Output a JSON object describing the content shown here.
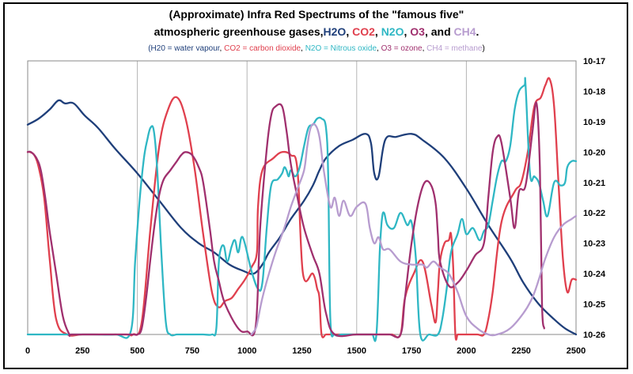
{
  "chart_data": {
    "type": "line",
    "title_line1": "(Approximate) Infra Red Spectrums of the \"famous five\"",
    "title_line2_prefix": "atmospheric greenhouse gases,",
    "title_gases": [
      {
        "label": "H2O",
        "color": "#1f3f7a"
      },
      {
        "label": "CO2",
        "color": "#e0404e"
      },
      {
        "label": "N2O",
        "color": "#2fb7c4"
      },
      {
        "label": "O3",
        "color": "#a0306e"
      },
      {
        "label": "CH4",
        "color": "#b79ccf"
      }
    ],
    "title_and": "and",
    "legend": {
      "open": "(",
      "close": ")",
      "items": [
        {
          "text": "H20 = water vapour",
          "color": "#1f3f7a"
        },
        {
          "text": "CO2 = carbon dioxide",
          "color": "#e0404e"
        },
        {
          "text": "N2O = Nitrous oxide",
          "color": "#2fb7c4"
        },
        {
          "text": "O3 = ozone",
          "color": "#a0306e"
        },
        {
          "text": "CH4 = methane",
          "color": "#b79ccf"
        }
      ]
    },
    "xlim": [
      0,
      2500
    ],
    "x_ticks": [
      0,
      250,
      500,
      750,
      1000,
      1250,
      1500,
      1750,
      2000,
      2250,
      2500
    ],
    "ylim": [
      -26,
      -17
    ],
    "y_tick_labels": [
      "10-17",
      "10-18",
      "10-19",
      "10-20",
      "10-21",
      "10-22",
      "10-23",
      "10-24",
      "10-25",
      "10-26"
    ],
    "grid": true,
    "series": [
      {
        "key": "h2o",
        "color": "#1f3f7a",
        "x": [
          0,
          50,
          100,
          140,
          170,
          210,
          260,
          320,
          400,
          500,
          600,
          700,
          780,
          850,
          920,
          980,
          1030,
          1070,
          1100,
          1150,
          1200,
          1260,
          1300,
          1330,
          1360,
          1420,
          1480,
          1540,
          1565,
          1580,
          1600,
          1630,
          1680,
          1750,
          1800,
          1900,
          2000,
          2100,
          2200,
          2260,
          2330,
          2400,
          2450,
          2500
        ],
        "y": [
          -19.1,
          -18.9,
          -18.6,
          -18.3,
          -18.4,
          -18.4,
          -18.8,
          -19.2,
          -19.9,
          -20.7,
          -21.6,
          -22.5,
          -23.0,
          -23.3,
          -23.7,
          -23.9,
          -24.0,
          -23.7,
          -23.3,
          -22.8,
          -22.2,
          -21.6,
          -21.1,
          -20.6,
          -20.2,
          -19.8,
          -19.6,
          -19.4,
          -19.7,
          -20.7,
          -20.8,
          -19.6,
          -19.5,
          -19.4,
          -19.6,
          -20.2,
          -21.2,
          -22.4,
          -23.5,
          -24.3,
          -25.0,
          -25.5,
          -25.8,
          -26.0
        ]
      },
      {
        "key": "co2",
        "color": "#e0404e",
        "x": [
          0,
          10,
          30,
          50,
          75,
          100,
          130,
          180,
          250,
          350,
          450,
          480,
          520,
          560,
          600,
          640,
          680,
          720,
          760,
          800,
          840,
          870,
          900,
          930,
          960,
          990,
          1020,
          1045,
          1050,
          1070,
          1120,
          1160,
          1200,
          1230,
          1255,
          1300,
          1320,
          1330,
          1340,
          1360,
          1380,
          1400,
          1500,
          1540,
          1580,
          1620,
          1660,
          1700,
          1720,
          1760,
          1800,
          1840,
          1860,
          1870,
          1880,
          1900,
          1920,
          1930,
          1940,
          1950,
          1960,
          1970,
          2000,
          2050,
          2080,
          2100,
          2120,
          2160,
          2220,
          2250,
          2280,
          2310,
          2340,
          2360,
          2380,
          2400,
          2420,
          2440,
          2460,
          2480,
          2500
        ],
        "y": [
          -20.0,
          -20.0,
          -20.1,
          -20.5,
          -21.5,
          -23.5,
          -25.5,
          -26.0,
          -26.0,
          -26.0,
          -26.0,
          -26.0,
          -25.6,
          -22.5,
          -19.8,
          -18.6,
          -18.2,
          -18.9,
          -20.5,
          -22.7,
          -24.6,
          -25.1,
          -24.9,
          -24.8,
          -24.5,
          -24.2,
          -23.8,
          -23.3,
          -21.8,
          -20.6,
          -20.2,
          -20.0,
          -20.1,
          -20.6,
          -24.0,
          -24.0,
          -24.5,
          -24.8,
          -26.0,
          -26.0,
          -26.0,
          -26.0,
          -26.0,
          -26.0,
          -26.0,
          -26.0,
          -26.0,
          -26.0,
          -24.8,
          -24.0,
          -23.6,
          -25.0,
          -25.6,
          -24.6,
          -23.6,
          -23.0,
          -22.9,
          -22.7,
          -23.8,
          -26.0,
          -26.0,
          -26.0,
          -26.0,
          -26.0,
          -26.0,
          -25.5,
          -24.6,
          -22.3,
          -21.3,
          -21.0,
          -20.0,
          -18.5,
          -18.2,
          -17.8,
          -17.6,
          -18.5,
          -21.0,
          -23.5,
          -24.6,
          -24.2,
          -24.2
        ]
      },
      {
        "key": "n2o",
        "color": "#2fb7c4",
        "x": [
          0,
          100,
          200,
          300,
          400,
          470,
          490,
          510,
          530,
          545,
          560,
          575,
          590,
          610,
          630,
          650,
          680,
          700,
          760,
          800,
          840,
          860,
          870,
          880,
          895,
          910,
          930,
          945,
          960,
          980,
          1020,
          1050,
          1070,
          1090,
          1110,
          1140,
          1160,
          1170,
          1180,
          1190,
          1200,
          1220,
          1240,
          1260,
          1280,
          1300,
          1320,
          1340,
          1360,
          1370,
          1380,
          1400,
          1430,
          1460,
          1500,
          1540,
          1570,
          1590,
          1605,
          1615,
          1625,
          1640,
          1670,
          1700,
          1730,
          1750,
          1770,
          1790,
          1830,
          1870,
          1890,
          1910,
          1930,
          1960,
          1980,
          2000,
          2030,
          2060,
          2080,
          2100,
          2120,
          2140,
          2160,
          2180,
          2200,
          2220,
          2240,
          2265,
          2270,
          2290,
          2310,
          2330,
          2350,
          2370,
          2400,
          2430,
          2450,
          2460,
          2480,
          2500
        ],
        "y": [
          -26.0,
          -26.0,
          -26.0,
          -26.0,
          -26.0,
          -25.9,
          -23.6,
          -21.6,
          -20.2,
          -19.6,
          -19.2,
          -19.3,
          -20.5,
          -23.4,
          -25.6,
          -26.0,
          -26.0,
          -26.0,
          -26.0,
          -26.0,
          -26.0,
          -25.8,
          -23.8,
          -23.2,
          -23.1,
          -23.6,
          -23.1,
          -22.9,
          -23.3,
          -22.8,
          -23.9,
          -24.5,
          -24.3,
          -22.5,
          -21.1,
          -20.9,
          -20.7,
          -20.5,
          -20.6,
          -20.8,
          -20.6,
          -20.8,
          -20.5,
          -19.8,
          -19.2,
          -19.1,
          -18.9,
          -18.9,
          -19.2,
          -20.8,
          -25.5,
          -26.0,
          -26.0,
          -26.0,
          -26.0,
          -26.0,
          -26.0,
          -26.0,
          -23.3,
          -22.2,
          -22.0,
          -22.4,
          -22.5,
          -22.0,
          -22.4,
          -22.3,
          -23.5,
          -26.0,
          -26.0,
          -26.0,
          -25.5,
          -24.5,
          -23.3,
          -22.7,
          -22.2,
          -22.7,
          -22.5,
          -22.9,
          -22.6,
          -22.4,
          -21.6,
          -20.8,
          -20.3,
          -20.3,
          -19.8,
          -18.6,
          -18.0,
          -17.8,
          -17.8,
          -20.7,
          -20.8,
          -21.0,
          -21.6,
          -22.1,
          -21.0,
          -21.1,
          -21.0,
          -20.5,
          -20.3,
          -20.3
        ]
      },
      {
        "key": "o3",
        "color": "#a0306e",
        "x": [
          0,
          15,
          40,
          60,
          80,
          100,
          130,
          160,
          190,
          200,
          300,
          400,
          480,
          500,
          520,
          540,
          560,
          580,
          600,
          620,
          650,
          680,
          700,
          720,
          750,
          780,
          800,
          830,
          850,
          870,
          900,
          960,
          1000,
          1040,
          1060,
          1090,
          1110,
          1130,
          1160,
          1180,
          1200,
          1230,
          1260,
          1300,
          1330,
          1360,
          1400,
          1500,
          1600,
          1650,
          1700,
          1720,
          1750,
          1780,
          1810,
          1840,
          1860,
          1870,
          1880,
          1920,
          1960,
          2000,
          2040,
          2080,
          2100,
          2120,
          2140,
          2160,
          2200,
          2220,
          2240,
          2270,
          2300,
          2320,
          2335,
          2345,
          2355
        ],
        "y": [
          -20.0,
          -20.0,
          -20.2,
          -20.6,
          -21.5,
          -22.6,
          -24.0,
          -25.4,
          -26.0,
          -26.0,
          -26.0,
          -26.0,
          -26.0,
          -26.0,
          -25.8,
          -24.8,
          -23.5,
          -22.3,
          -21.4,
          -20.9,
          -20.6,
          -20.3,
          -20.1,
          -20.0,
          -20.1,
          -20.5,
          -21.0,
          -22.5,
          -23.6,
          -24.2,
          -25.0,
          -25.8,
          -25.9,
          -25.7,
          -22.5,
          -19.9,
          -18.8,
          -18.5,
          -18.5,
          -19.3,
          -20.4,
          -21.5,
          -22.5,
          -23.4,
          -24.0,
          -25.3,
          -26.0,
          -26.0,
          -26.0,
          -26.0,
          -26.0,
          -24.8,
          -23.0,
          -21.7,
          -21.0,
          -21.1,
          -21.7,
          -22.7,
          -23.6,
          -24.4,
          -24.3,
          -23.9,
          -23.4,
          -23.0,
          -21.5,
          -20.0,
          -19.5,
          -19.7,
          -21.5,
          -22.5,
          -21.3,
          -21.1,
          -19.4,
          -18.4,
          -20.5,
          -25.0,
          -25.8
        ]
      },
      {
        "key": "ch4",
        "color": "#b79ccf",
        "x": [
          1020,
          1040,
          1050,
          1070,
          1100,
          1130,
          1170,
          1200,
          1230,
          1260,
          1275,
          1290,
          1310,
          1330,
          1350,
          1380,
          1400,
          1420,
          1440,
          1470,
          1500,
          1540,
          1560,
          1580,
          1600,
          1620,
          1650,
          1700,
          1750,
          1800,
          1820,
          1850,
          1880,
          1920,
          1960,
          2000,
          2050,
          2100,
          2140,
          2200,
          2260,
          2300,
          2330,
          2360,
          2400,
          2440,
          2480,
          2500
        ],
        "y": [
          -26.0,
          -25.8,
          -25.5,
          -24.8,
          -24.0,
          -23.3,
          -22.5,
          -21.8,
          -21.2,
          -20.6,
          -19.8,
          -19.2,
          -19.1,
          -19.5,
          -20.6,
          -21.8,
          -21.5,
          -22.1,
          -21.6,
          -22.1,
          -21.8,
          -21.7,
          -22.5,
          -23.0,
          -22.8,
          -23.2,
          -23.2,
          -23.6,
          -23.7,
          -23.7,
          -23.8,
          -23.6,
          -23.8,
          -24.0,
          -24.6,
          -25.4,
          -25.8,
          -26.0,
          -26.0,
          -25.8,
          -25.3,
          -24.8,
          -24.2,
          -23.5,
          -22.8,
          -22.4,
          -22.2,
          -22.1
        ]
      }
    ]
  }
}
